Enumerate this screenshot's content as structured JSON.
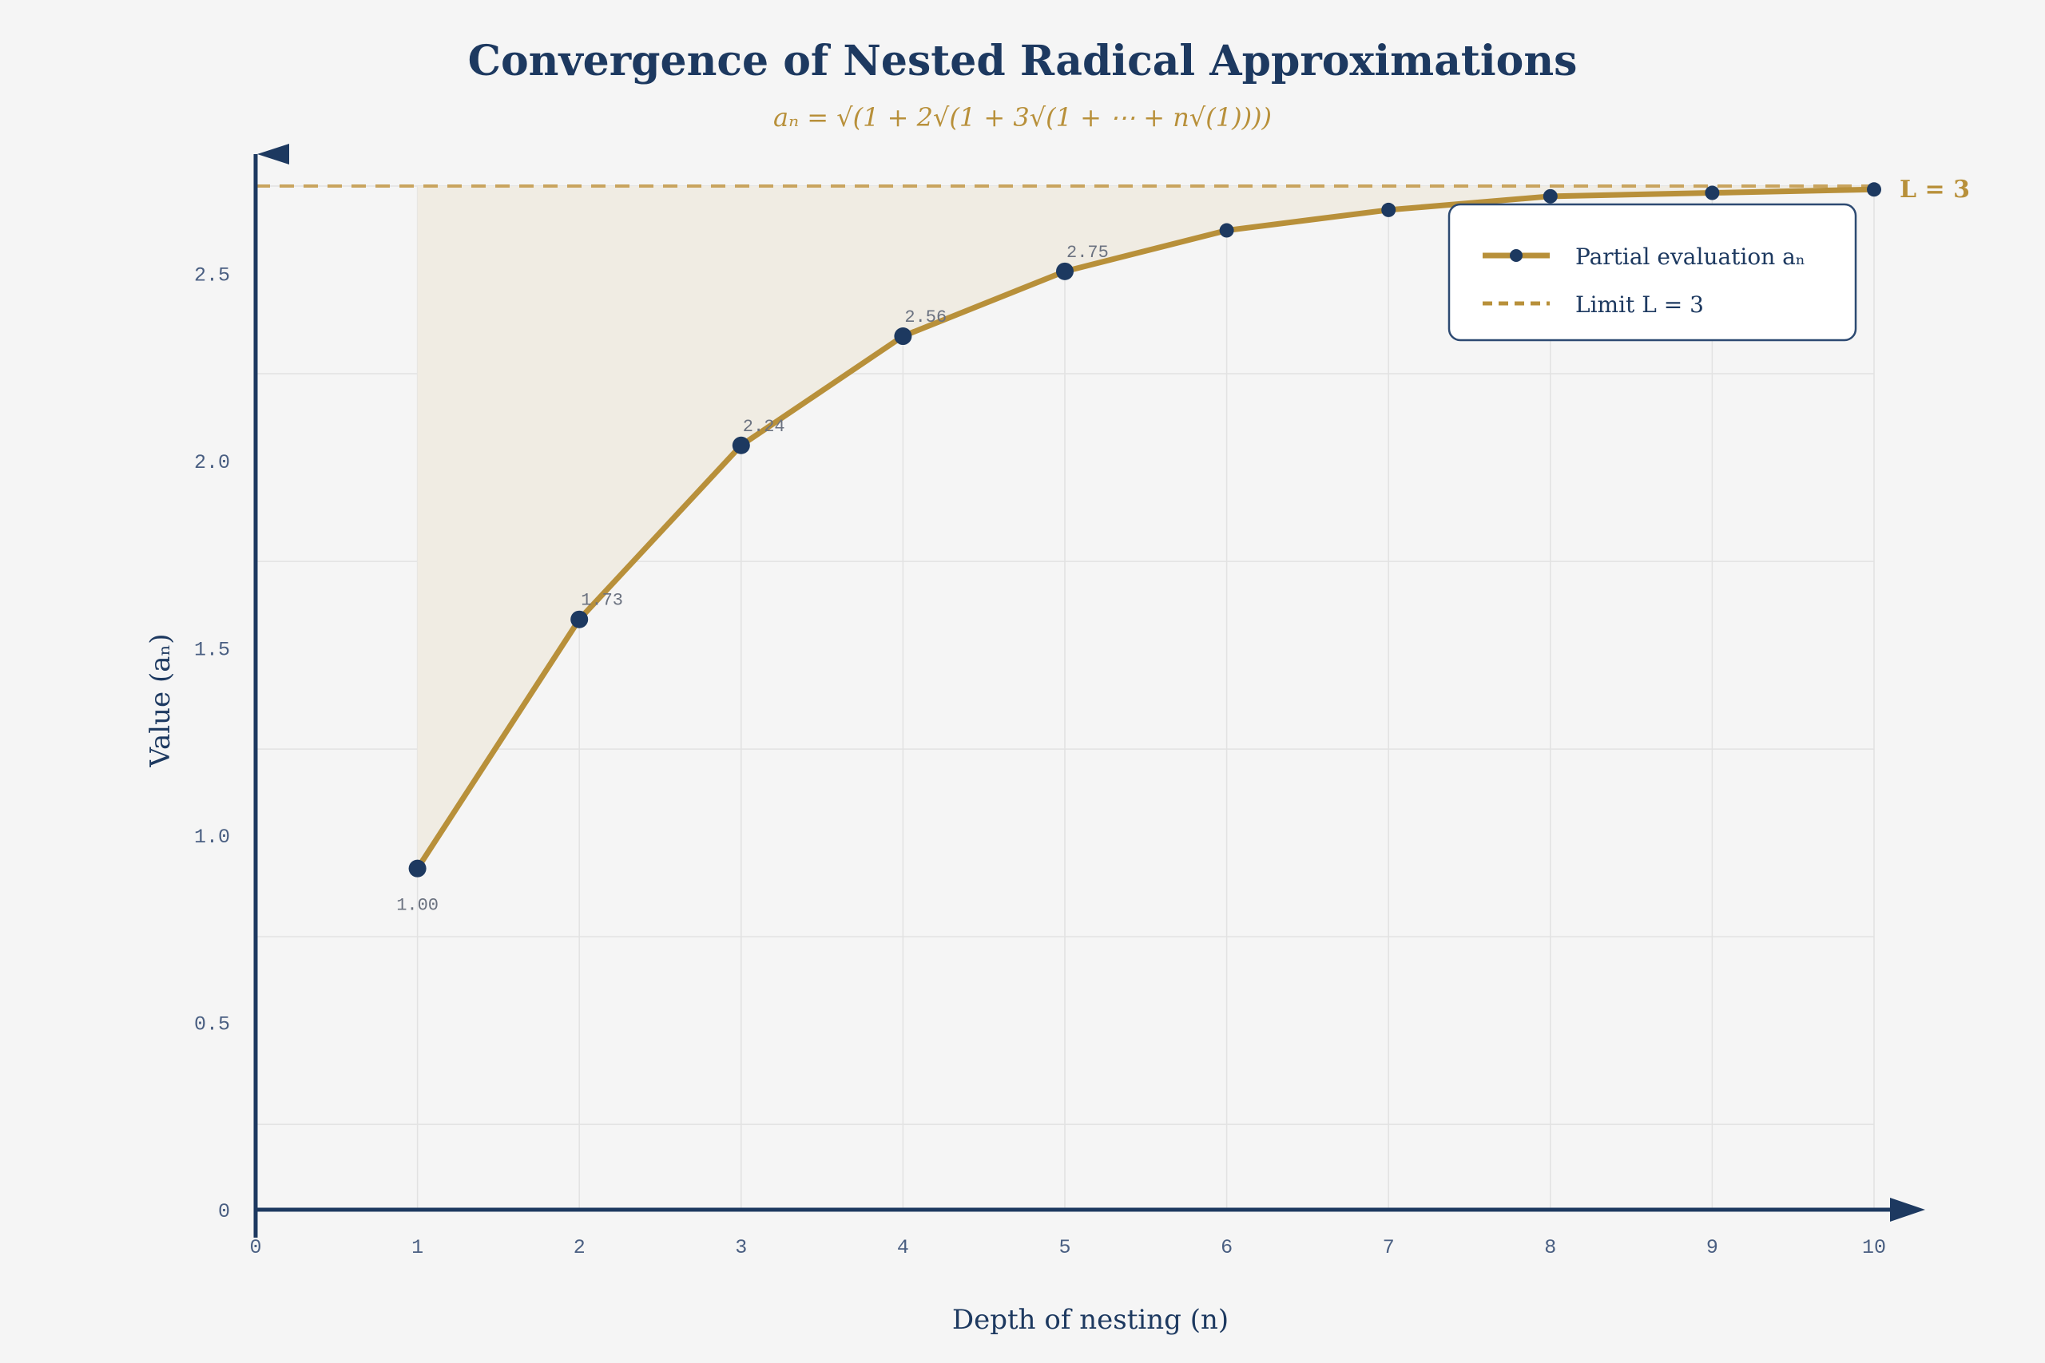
{
  "chart_data": {
    "type": "line",
    "title": "Convergence of Nested Radical Approximations",
    "subtitle": "aₙ = √(1 + 2√(1 + 3√(1 + ⋯ + n√(1))))",
    "xlabel": "Depth of nesting (n)",
    "ylabel": "Value (aₙ)",
    "xlim": [
      0,
      10
    ],
    "ylim": [
      0,
      3
    ],
    "x_ticks": [
      "0",
      "1",
      "2",
      "3",
      "4",
      "5",
      "6",
      "7",
      "8",
      "9",
      "10"
    ],
    "y_ticks": [
      "0",
      "0.5",
      "1.0",
      "1.5",
      "2.0",
      "2.5"
    ],
    "grid": true,
    "legend_position": "top-right",
    "series": [
      {
        "name": "Partial evaluation aₙ",
        "x": [
          1,
          2,
          3,
          4,
          5,
          6,
          7,
          8,
          9,
          10
        ],
        "y": [
          1.0,
          1.73,
          2.24,
          2.56,
          2.75,
          2.87,
          2.93,
          2.97,
          2.98,
          2.99
        ],
        "color": "#b8903a",
        "marker_color": "#1d3960"
      }
    ],
    "data_labels": [
      {
        "x": 1,
        "text": "1.00"
      },
      {
        "x": 2,
        "text": "1.73"
      },
      {
        "x": 3,
        "text": "2.24"
      },
      {
        "x": 4,
        "text": "2.56"
      },
      {
        "x": 5,
        "text": "2.75"
      }
    ],
    "limit": {
      "value": 3,
      "label": "L = 3",
      "legend": "Limit L = 3",
      "color": "#c9a45e"
    },
    "colors": {
      "axis": "#1d3960",
      "fill": "#f0ece3",
      "background": "#f5f5f5"
    }
  }
}
